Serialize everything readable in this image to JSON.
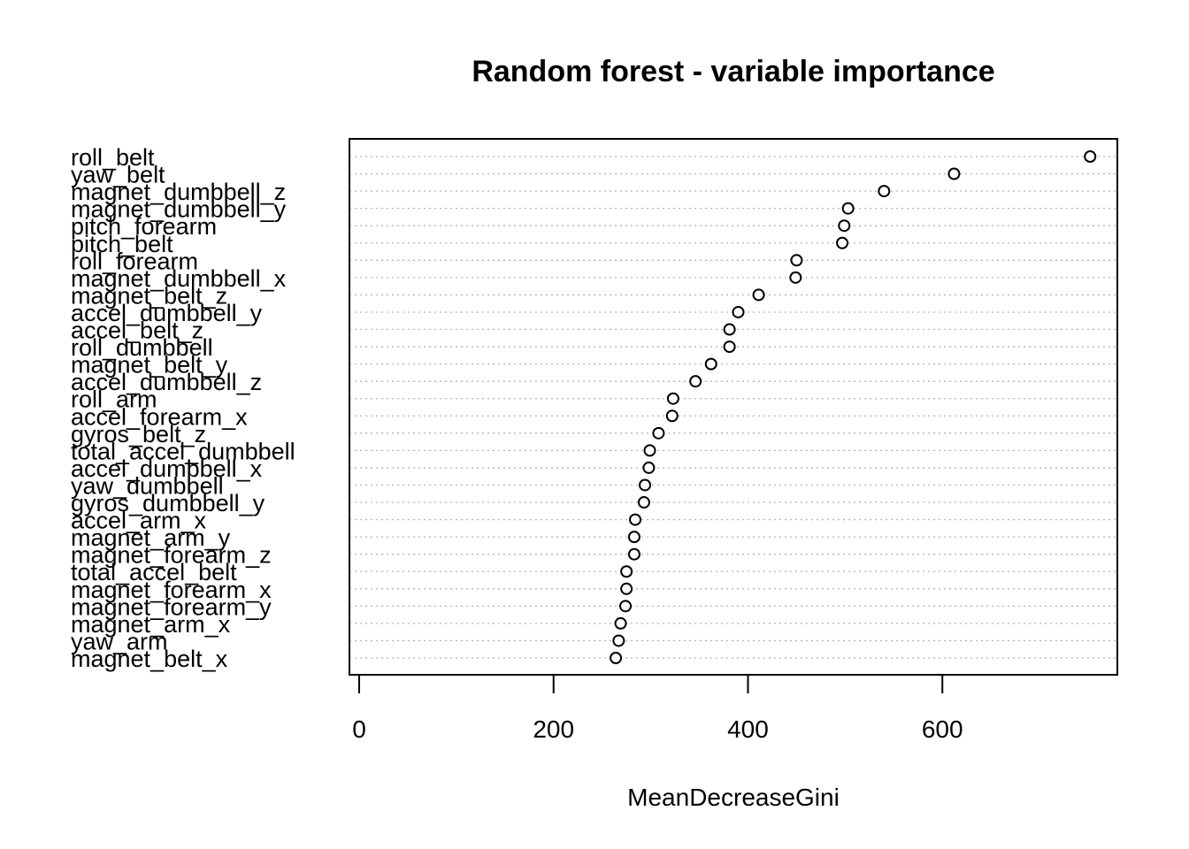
{
  "chart_data": {
    "type": "scatter",
    "subtype": "dotchart",
    "title": "Random forest - variable importance",
    "xlabel": "MeanDecreaseGini",
    "ylabel": "",
    "xlim": [
      -10,
      780
    ],
    "xticks": [
      0,
      200,
      400,
      600
    ],
    "grid": "horizontal-dotted",
    "legend": "none",
    "marker": "open-circle",
    "categories": [
      "roll_belt",
      "yaw_belt",
      "magnet_dumbbell_z",
      "magnet_dumbbell_y",
      "pitch_forearm",
      "pitch_belt",
      "roll_forearm",
      "magnet_dumbbell_x",
      "magnet_belt_z",
      "accel_dumbbell_y",
      "accel_belt_z",
      "roll_dumbbell",
      "magnet_belt_y",
      "accel_dumbbell_z",
      "roll_arm",
      "accel_forearm_x",
      "gyros_belt_z",
      "total_accel_dumbbell",
      "accel_dumbbell_x",
      "yaw_dumbbell",
      "gyros_dumbbell_y",
      "accel_arm_x",
      "magnet_arm_y",
      "magnet_forearm_z",
      "total_accel_belt",
      "magnet_forearm_x",
      "magnet_forearm_y",
      "magnet_arm_x",
      "yaw_arm",
      "magnet_belt_x"
    ],
    "values": [
      752,
      612,
      540,
      503,
      499,
      497,
      450,
      449,
      411,
      390,
      381,
      381,
      362,
      346,
      323,
      322,
      308,
      299,
      298,
      294,
      293,
      284,
      283,
      283,
      275,
      275,
      274,
      269,
      267,
      264
    ]
  }
}
